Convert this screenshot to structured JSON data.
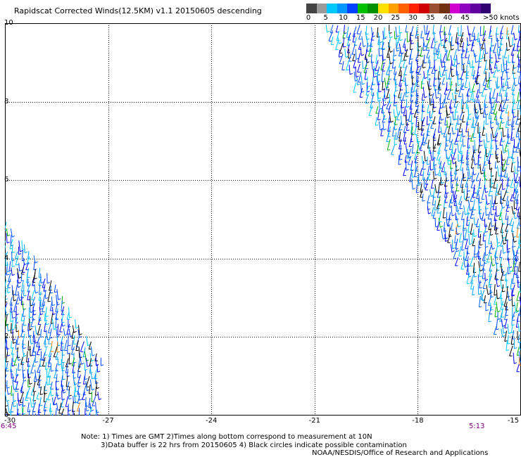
{
  "title": "Rapidscat Corrected Winds(12.5KM) v1.1 20150605 descending",
  "colorbar": {
    "labels": [
      "0",
      "5",
      "10",
      "15",
      "20",
      "25",
      "30",
      "35",
      "40",
      "45",
      ">50 knots"
    ],
    "colors": [
      "#444444",
      "#9a9a9a",
      "#00c8ff",
      "#0096ff",
      "#0040ff",
      "#00c000",
      "#009000",
      "#ffe000",
      "#ffa000",
      "#ff6000",
      "#ff2000",
      "#d00000",
      "#9a5030",
      "#703010",
      "#d000d0",
      "#9000c0",
      "#6000a0",
      "#300070"
    ]
  },
  "axes": {
    "y_ticks": [
      "10",
      "8",
      "6",
      "4",
      "2",
      "0"
    ],
    "x_ticks": [
      "-30",
      "-27",
      "-24",
      "-21",
      "-18",
      "-15"
    ]
  },
  "times": {
    "left": "6:45",
    "right": "5:13"
  },
  "notes": {
    "line1": "Note: 1) Times are GMT 2)Times along bottom correspond to measurement at 10N",
    "line2": "3)Data buffer is 22 hrs from 20150605 4) Black circles indicate possible contamination",
    "credit": "NOAA/NESDIS/Office of Research and Applications"
  },
  "map": {
    "lon_range": [
      -30,
      -15
    ],
    "lat_range": [
      0,
      10
    ],
    "swaths": [
      {
        "name": "east",
        "polygon": [
          [
            -20.8,
            10
          ],
          [
            -15,
            10
          ],
          [
            -15,
            1.2
          ]
        ]
      },
      {
        "name": "west",
        "polygon": [
          [
            -30,
            5.0
          ],
          [
            -30,
            0
          ],
          [
            -27.3,
            0
          ],
          [
            -27.2,
            1.5
          ],
          [
            -28.6,
            3.5
          ]
        ]
      }
    ]
  }
}
